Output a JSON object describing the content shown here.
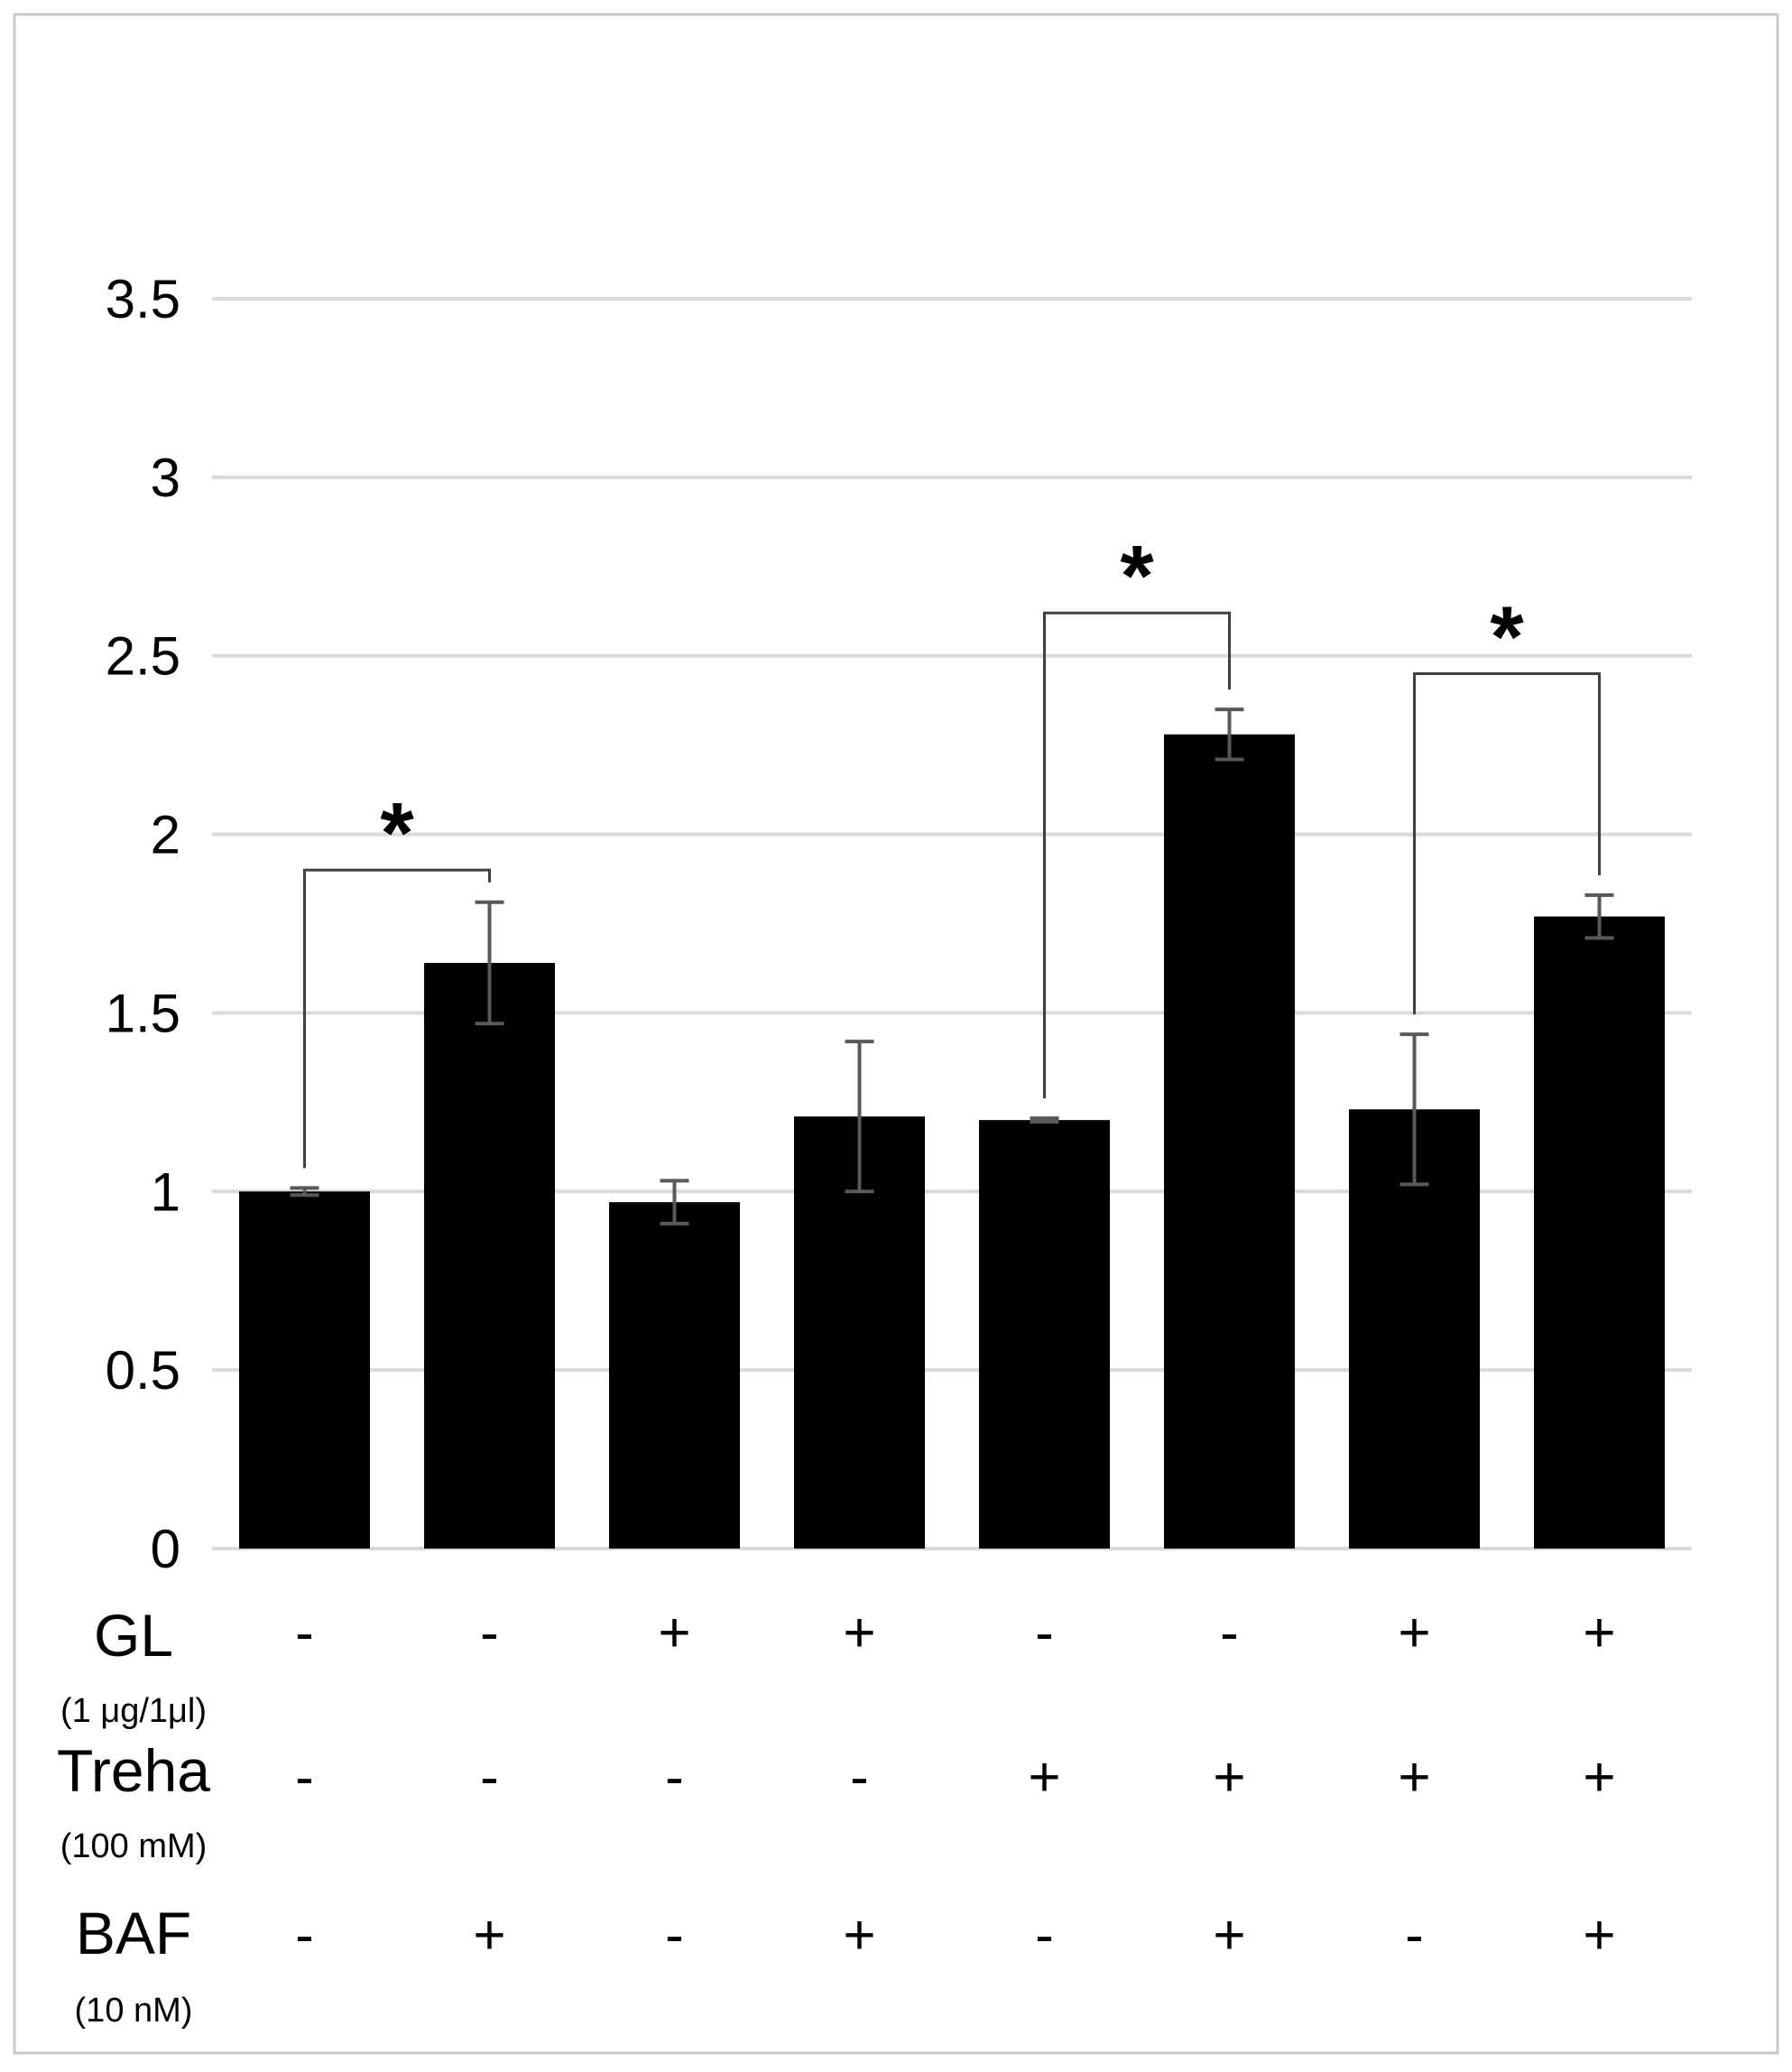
{
  "chart_data": {
    "type": "bar",
    "title": "",
    "xlabel": "",
    "ylabel": "",
    "ylim": [
      0,
      3.5
    ],
    "y_ticks": [
      "0",
      "0.5",
      "1",
      "1.5",
      "2",
      "2.5",
      "3",
      "3.5"
    ],
    "grid": true,
    "colors": {
      "bar": "#000000",
      "error_bar": "#595959",
      "grid": "#d9d9d9",
      "bracket": "#404040"
    },
    "values": [
      1.0,
      1.64,
      0.97,
      1.21,
      1.2,
      2.28,
      1.23,
      1.77
    ],
    "errors": [
      0.01,
      0.17,
      0.06,
      0.21,
      0.005,
      0.07,
      0.21,
      0.06
    ],
    "conditions": [
      {
        "name": "GL",
        "unit": "(1 μg/1μl)",
        "signs": [
          "-",
          "-",
          "+",
          "+",
          "-",
          "-",
          "+",
          "+"
        ]
      },
      {
        "name": "Treha",
        "unit": "(100 mM)",
        "signs": [
          "-",
          "-",
          "-",
          "-",
          "+",
          "+",
          "+",
          "+"
        ]
      },
      {
        "name": "BAF",
        "unit": "(10 nM)",
        "signs": [
          "-",
          "+",
          "-",
          "+",
          "-",
          "+",
          "-",
          "+"
        ]
      }
    ],
    "significance": [
      {
        "from": 0,
        "to": 1,
        "level": 1.9,
        "label": "*"
      },
      {
        "from": 4,
        "to": 5,
        "level": 2.62,
        "label": "*"
      },
      {
        "from": 6,
        "to": 7,
        "level": 2.45,
        "label": "*"
      }
    ]
  }
}
